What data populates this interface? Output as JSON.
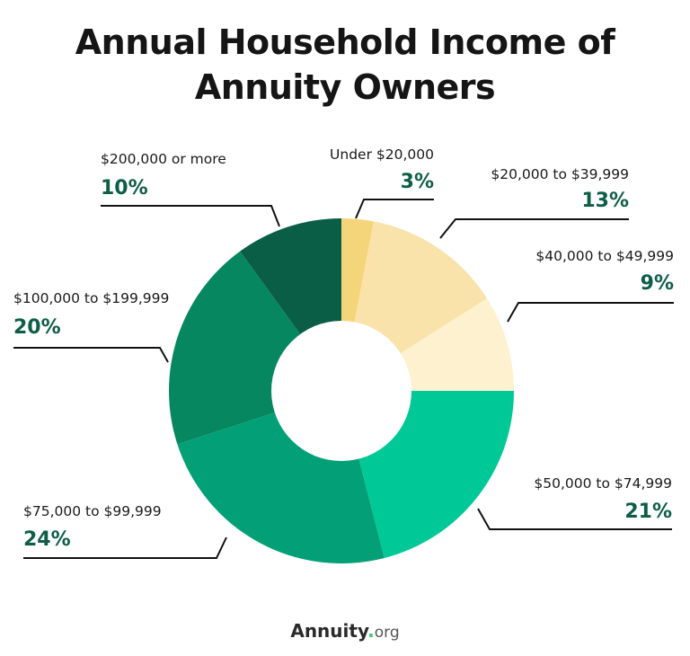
{
  "chart_data": {
    "type": "pie",
    "variant": "donut",
    "title": "Annual Household Income of Annuity Owners",
    "categories": [
      "Under $20,000",
      "$20,000 to $39,999",
      "$40,000 to $49,999",
      "$50,000 to $74,999",
      "$75,000 to $99,999",
      "$100,000 to $199,999",
      "$200,000 or more"
    ],
    "values": [
      3,
      13,
      9,
      21,
      24,
      20,
      10
    ],
    "unit": "%",
    "colors": [
      "#f5d57a",
      "#f9e3aa",
      "#fdf1cf",
      "#00c896",
      "#03a077",
      "#06875f",
      "#0a5e46"
    ],
    "start_angle": "12 o'clock",
    "direction": "clockwise",
    "legend": "none (leader-line labels)"
  },
  "header": {
    "title_line1": "Annual Household Income of",
    "title_line2": "Annuity Owners"
  },
  "labels": [
    {
      "name": "Under $20,000",
      "pct": "3%"
    },
    {
      "name": "$20,000 to $39,999",
      "pct": "13%"
    },
    {
      "name": "$40,000 to $49,999",
      "pct": "9%"
    },
    {
      "name": "$50,000 to $74,999",
      "pct": "21%"
    },
    {
      "name": "$75,000 to $99,999",
      "pct": "24%"
    },
    {
      "name": "$100,000 to $199,999",
      "pct": "20%"
    },
    {
      "name": "$200,000 or more",
      "pct": "10%"
    }
  ],
  "footer": {
    "brand": "Annuity",
    "dot": ".",
    "tld": "org"
  }
}
